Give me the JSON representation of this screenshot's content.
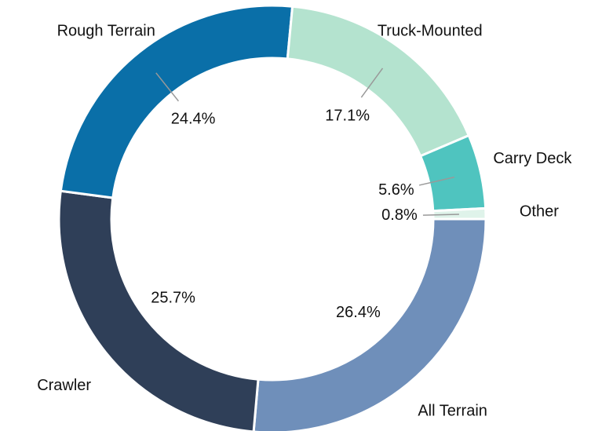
{
  "chart_data": {
    "type": "donut",
    "categories": [
      "All Terrain",
      "Crawler",
      "Rough Terrain",
      "Truck-Mounted",
      "Carry Deck",
      "Other"
    ],
    "values": [
      26.4,
      25.7,
      24.4,
      17.1,
      5.6,
      0.8
    ],
    "value_labels": [
      "26.4%",
      "25.7%",
      "24.4%",
      "17.1%",
      "5.6%",
      "0.8%"
    ],
    "colors": [
      "#6f8fba",
      "#2f3f58",
      "#0a6fa8",
      "#b4e3cf",
      "#4fc4bf",
      "#dff3ea"
    ]
  }
}
